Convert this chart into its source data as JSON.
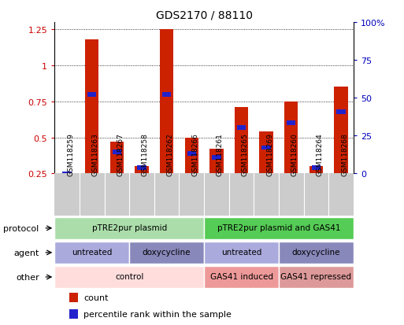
{
  "title": "GDS2170 / 88110",
  "samples": [
    "GSM118259",
    "GSM118263",
    "GSM118267",
    "GSM118258",
    "GSM118262",
    "GSM118266",
    "GSM118261",
    "GSM118265",
    "GSM118269",
    "GSM118260",
    "GSM118264",
    "GSM118268"
  ],
  "red_values": [
    0.25,
    1.18,
    0.47,
    0.3,
    1.25,
    0.5,
    0.42,
    0.71,
    0.54,
    0.75,
    0.3,
    0.85
  ],
  "blue_values": [
    0.25,
    0.8,
    0.4,
    0.29,
    0.8,
    0.39,
    0.36,
    0.57,
    0.43,
    0.6,
    0.29,
    0.68
  ],
  "ylim_left": [
    0.25,
    1.3
  ],
  "ylim_right": [
    0,
    100
  ],
  "yticks_left": [
    0.25,
    0.5,
    0.75,
    1.0,
    1.25
  ],
  "yticks_right": [
    0,
    25,
    50,
    75,
    100
  ],
  "ytick_labels_left": [
    "0.25",
    "0.5",
    "0.75",
    "1",
    "1.25"
  ],
  "ytick_labels_right": [
    "0",
    "25",
    "50",
    "75",
    "100%"
  ],
  "left_tick_color": "#cc0000",
  "right_tick_color": "#0000bb",
  "bar_color_red": "#cc2200",
  "bar_color_blue": "#2222cc",
  "bg_label": "#cccccc",
  "protocol_row": [
    {
      "label": "pTRE2pur plasmid",
      "start": 0,
      "end": 5,
      "color": "#aaddaa"
    },
    {
      "label": "pTRE2pur plasmid and GAS41",
      "start": 6,
      "end": 11,
      "color": "#55cc55"
    }
  ],
  "agent_row": [
    {
      "label": "untreated",
      "start": 0,
      "end": 2,
      "color": "#aaaadd"
    },
    {
      "label": "doxycycline",
      "start": 3,
      "end": 5,
      "color": "#8888bb"
    },
    {
      "label": "untreated",
      "start": 6,
      "end": 8,
      "color": "#aaaadd"
    },
    {
      "label": "doxycycline",
      "start": 9,
      "end": 11,
      "color": "#8888bb"
    }
  ],
  "other_row": [
    {
      "label": "control",
      "start": 0,
      "end": 5,
      "color": "#ffdddd"
    },
    {
      "label": "GAS41 induced",
      "start": 6,
      "end": 8,
      "color": "#ee9999"
    },
    {
      "label": "GAS41 repressed",
      "start": 9,
      "end": 11,
      "color": "#dd9999"
    }
  ],
  "row_label_names": [
    "protocol",
    "agent",
    "other"
  ],
  "legend_red": "count",
  "legend_blue": "percentile rank within the sample",
  "bar_width": 0.55,
  "figsize": [
    5.13,
    4.14
  ],
  "dpi": 100
}
